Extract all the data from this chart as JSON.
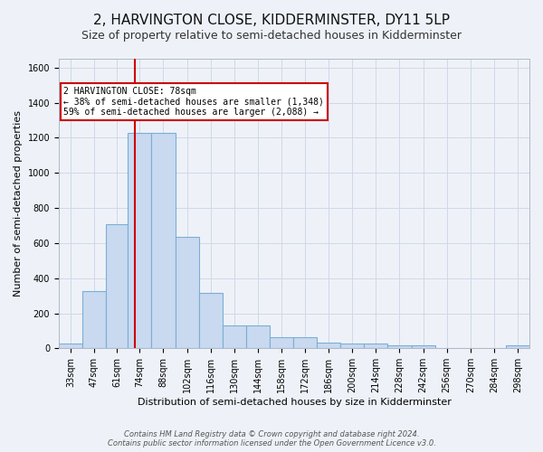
{
  "title": "2, HARVINGTON CLOSE, KIDDERMINSTER, DY11 5LP",
  "subtitle": "Size of property relative to semi-detached houses in Kidderminster",
  "xlabel_dist": "Distribution of semi-detached houses by size in Kidderminster",
  "ylabel": "Number of semi-detached properties",
  "footer_line1": "Contains HM Land Registry data © Crown copyright and database right 2024.",
  "footer_line2": "Contains public sector information licensed under the Open Government Licence v3.0.",
  "bar_edges": [
    33,
    47,
    61,
    74,
    88,
    102,
    116,
    130,
    144,
    158,
    172,
    186,
    200,
    214,
    228,
    242,
    256,
    270,
    284,
    298,
    312
  ],
  "bar_heights": [
    28,
    325,
    710,
    1230,
    1230,
    635,
    315,
    130,
    130,
    65,
    65,
    35,
    25,
    25,
    18,
    18,
    0,
    0,
    0,
    18
  ],
  "bar_color": "#c9d9f0",
  "bar_edgecolor": "#7bafd4",
  "property_size": 78,
  "annotation_title": "2 HARVINGTON CLOSE: 78sqm",
  "annotation_line1": "← 38% of semi-detached houses are smaller (1,348)",
  "annotation_line2": "59% of semi-detached houses are larger (2,088) →",
  "annotation_box_color": "#ffffff",
  "annotation_box_edgecolor": "#cc0000",
  "vline_color": "#cc0000",
  "ylim": [
    0,
    1650
  ],
  "yticks": [
    0,
    200,
    400,
    600,
    800,
    1000,
    1200,
    1400,
    1600
  ],
  "grid_color": "#d0d8e8",
  "bg_color": "#eef2f8",
  "title_fontsize": 11,
  "subtitle_fontsize": 9,
  "ylabel_fontsize": 8,
  "xlabel_fontsize": 8,
  "tick_fontsize": 7,
  "annotation_fontsize": 7,
  "footer_fontsize": 6
}
